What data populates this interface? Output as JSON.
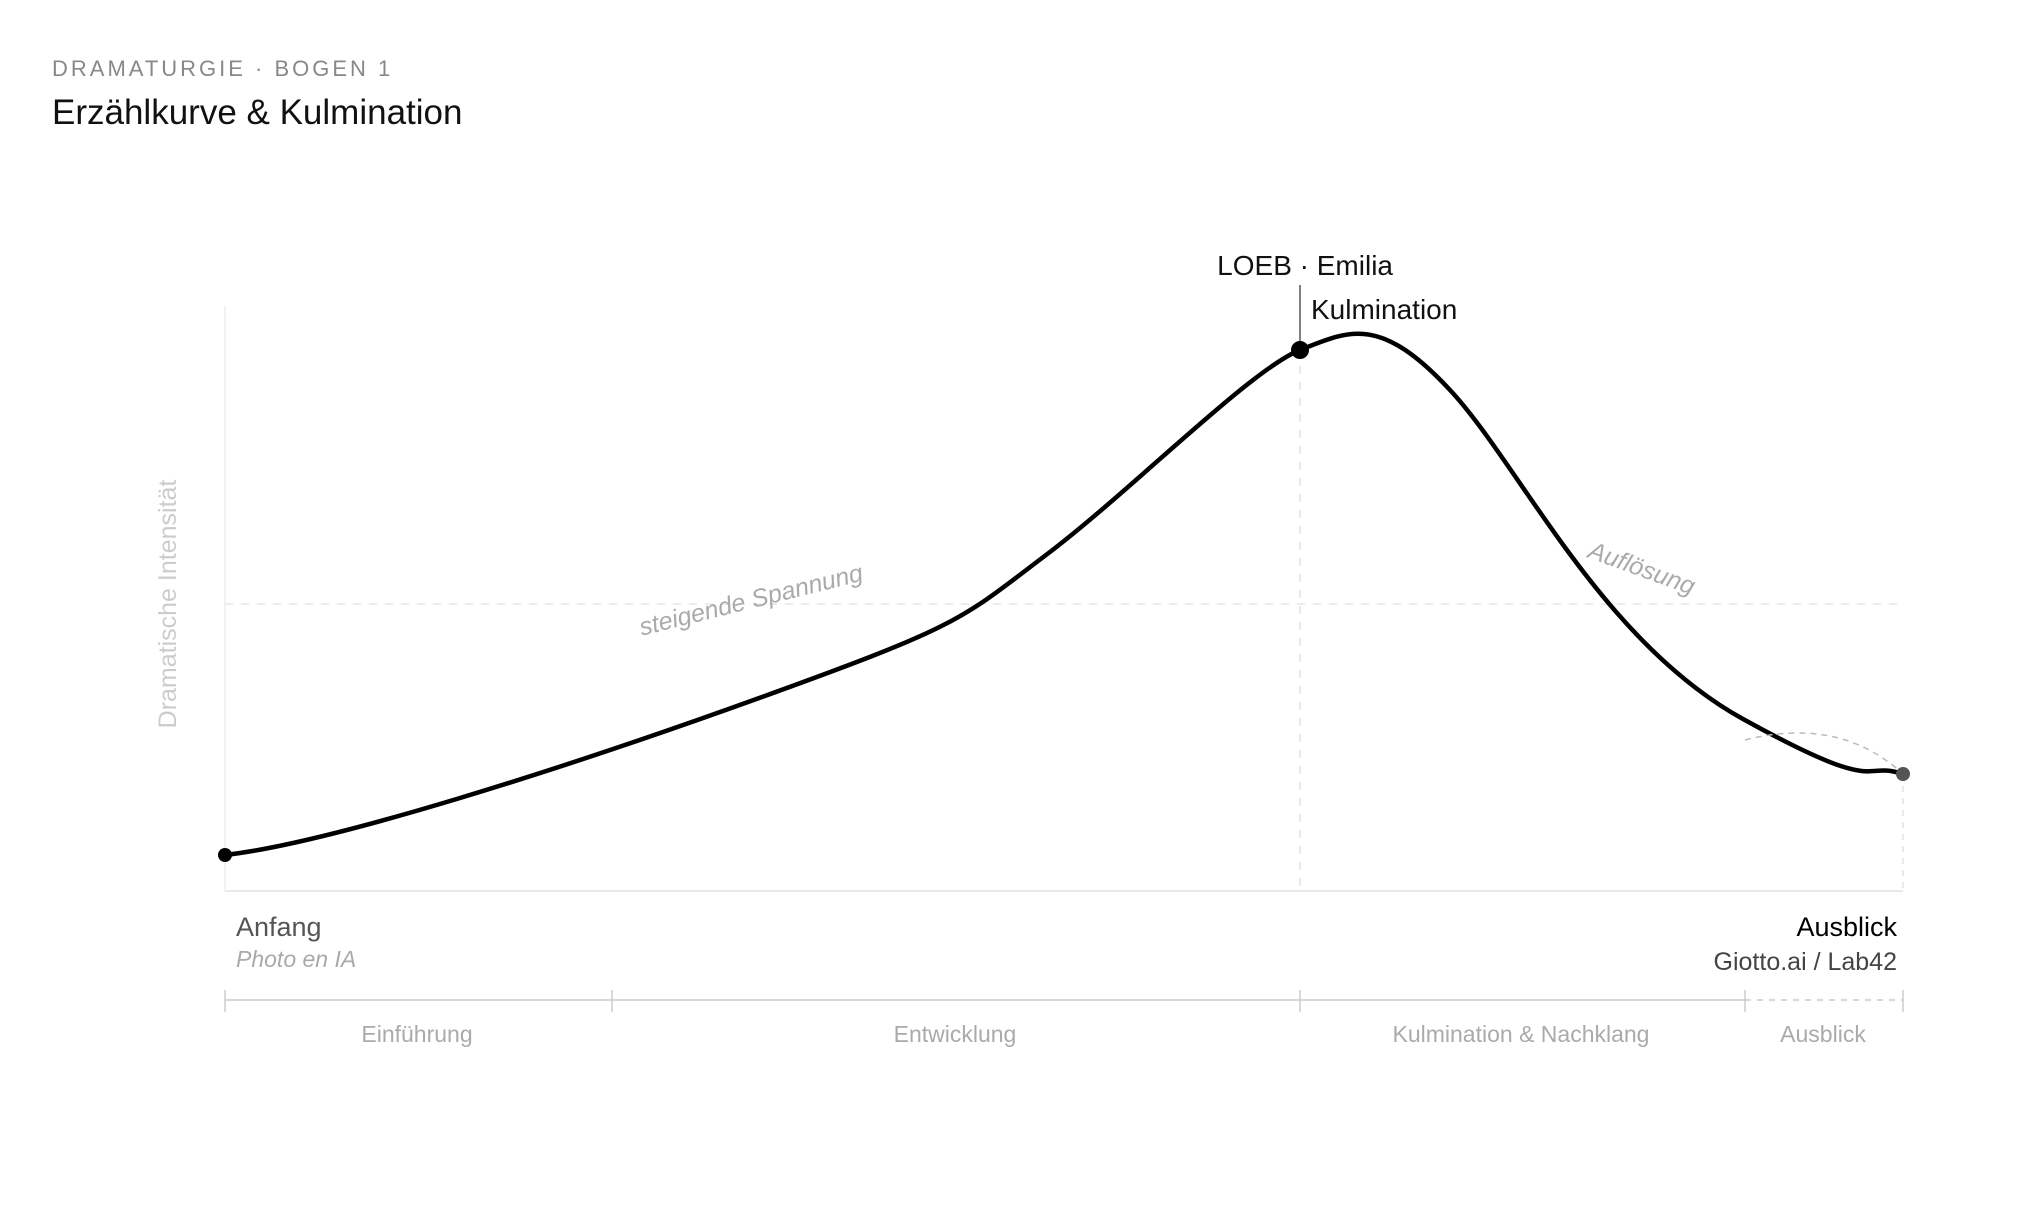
{
  "header": {
    "kicker": "DRAMATURGIE · BOGEN 1",
    "title": "Erzählkurve & Kulmination"
  },
  "axis": {
    "y_label": "Dramatische Intensität"
  },
  "peak": {
    "label": "LOEB · Emilia",
    "sublabel": "Kulmination"
  },
  "annotations": {
    "rising": "steigende Spannung",
    "falling": "Auflösung"
  },
  "start": {
    "label": "Anfang",
    "sublabel": "Photo en IA"
  },
  "end": {
    "label": "Ausblick",
    "sublabel": "Giotto.ai / Lab42"
  },
  "phases": [
    "Einführung",
    "Entwicklung",
    "Kulmination & Nachklang",
    "Ausblick"
  ]
}
